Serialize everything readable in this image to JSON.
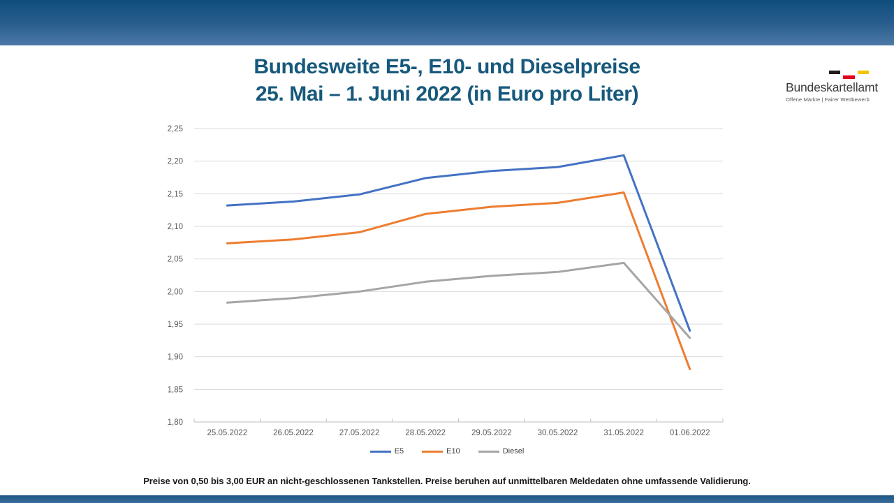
{
  "header": {
    "title_line1": "Bundesweite E5-, E10- und Dieselpreise",
    "title_line2": "25. Mai – 1. Juni 2022 (in Euro pro Liter)"
  },
  "logo": {
    "name": "Bundeskartellamt",
    "tagline": "Offene Märkte | Fairer Wettbewerb",
    "flag_black": "#1D1D1B",
    "flag_red": "#E2001A",
    "flag_yellow": "#F2C500"
  },
  "colors": {
    "title": "#17597C",
    "banner_top": "#0F4D7D",
    "banner_bottom": "#4D79A7",
    "gridline": "#D9D9D9",
    "axis": "#BFBFBF",
    "tick_label": "#595959"
  },
  "footer": {
    "note": "Preise von 0,50 bis 3,00 EUR an nicht-geschlossenen Tankstellen. Preise beruhen auf unmittelbaren Meldedaten ohne umfassende Validierung."
  },
  "chart_data": {
    "type": "line",
    "title": "Bundesweite E5-, E10- und Dieselpreise 25. Mai – 1. Juni 2022 (in Euro pro Liter)",
    "categories": [
      "25.05.2022",
      "26.05.2022",
      "27.05.2022",
      "28.05.2022",
      "29.05.2022",
      "30.05.2022",
      "31.05.2022",
      "01.06.2022"
    ],
    "series": [
      {
        "name": "E5",
        "color": "#4472C4",
        "values": [
          2.132,
          2.138,
          2.149,
          2.174,
          2.185,
          2.191,
          2.209,
          1.94
        ]
      },
      {
        "name": "E10",
        "color": "#ED7D31",
        "values": [
          2.074,
          2.08,
          2.091,
          2.119,
          2.13,
          2.136,
          2.152,
          1.881
        ]
      },
      {
        "name": "Diesel",
        "color": "#A5A5A5",
        "values": [
          1.983,
          1.99,
          2.0,
          2.015,
          2.024,
          2.03,
          2.044,
          1.929
        ]
      }
    ],
    "ylim": [
      1.8,
      2.25
    ],
    "y_tick_step": 0.05,
    "y_tick_labels": [
      "1,80",
      "1,85",
      "1,90",
      "1,95",
      "2,00",
      "2,05",
      "2,10",
      "2,15",
      "2,20",
      "2,25"
    ],
    "xlabel": "",
    "ylabel": "",
    "grid": true,
    "legend_position": "bottom"
  }
}
